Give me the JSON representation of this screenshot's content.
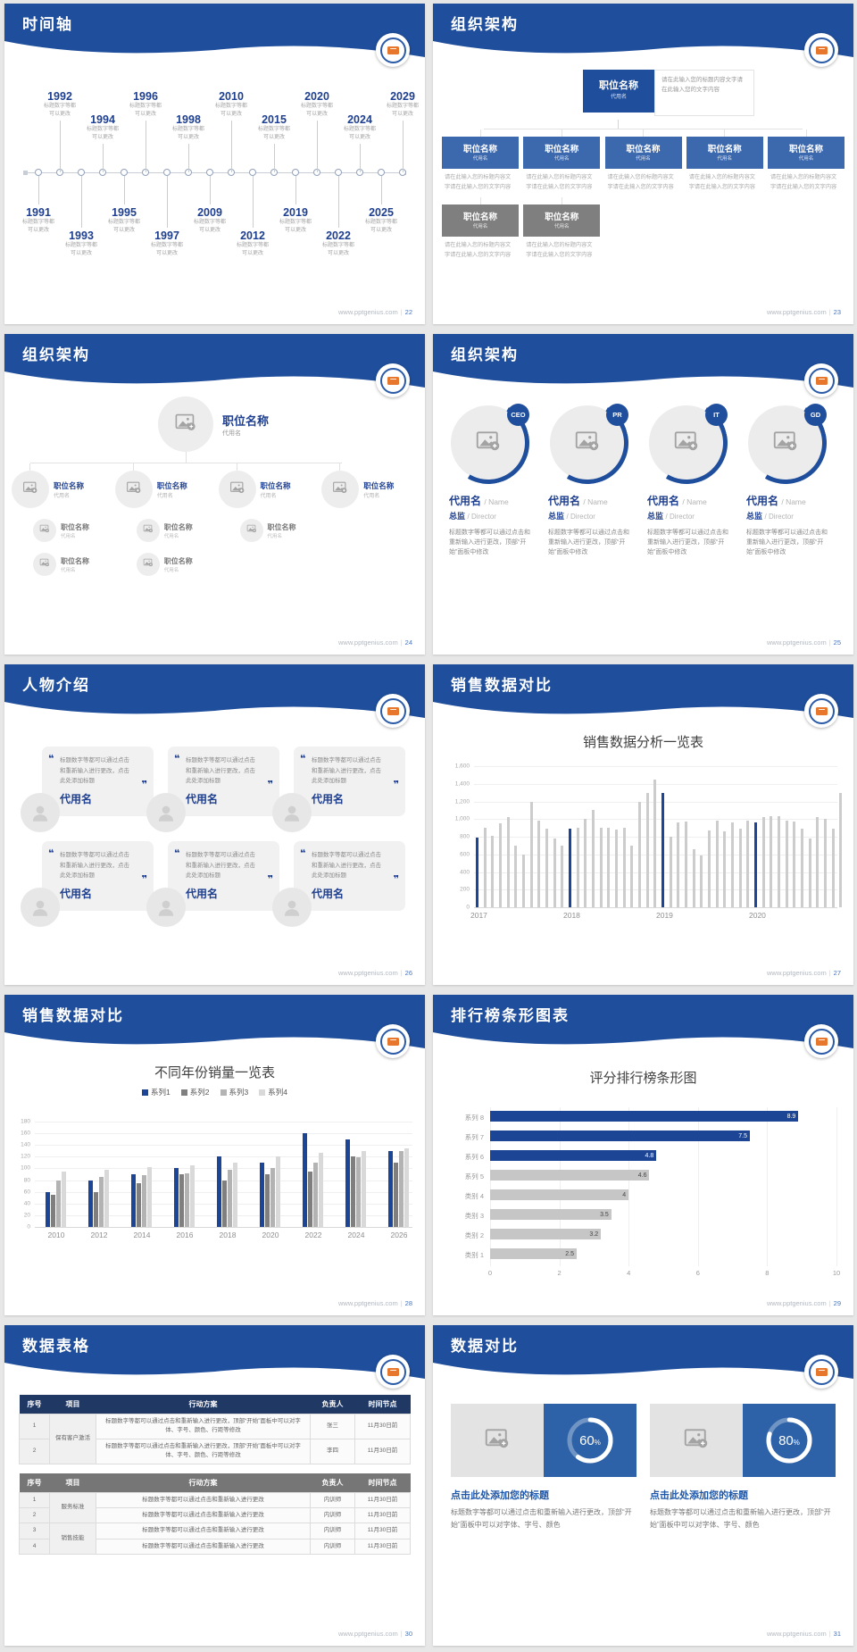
{
  "footer": {
    "site": "www.pptgenius.com",
    "divider": "|"
  },
  "theme": {
    "header_blue": "#1f4e9c",
    "navy": "#1c4596",
    "table1_header": "#1f3864",
    "table2_header": "#767676",
    "gray_box": "#7f7f7f",
    "bar_gray": "#cccccc",
    "donut_panel_blue": "#2d62a8"
  },
  "slides": [
    {
      "title": "时间轴",
      "page": "22",
      "type": "timeline",
      "caption_line1": "标题数字等都",
      "caption_line2": "可以更改",
      "years": [
        {
          "year": "1991",
          "side": "bottom"
        },
        {
          "year": "1992",
          "side": "top"
        },
        {
          "year": "1993",
          "side": "bottom"
        },
        {
          "year": "1994",
          "side": "top"
        },
        {
          "year": "1995",
          "side": "bottom"
        },
        {
          "year": "1996",
          "side": "top"
        },
        {
          "year": "1997",
          "side": "bottom"
        },
        {
          "year": "1998",
          "side": "top"
        },
        {
          "year": "2009",
          "side": "bottom"
        },
        {
          "year": "2010",
          "side": "top"
        },
        {
          "year": "2012",
          "side": "bottom"
        },
        {
          "year": "2015",
          "side": "top"
        },
        {
          "year": "2019",
          "side": "bottom"
        },
        {
          "year": "2020",
          "side": "top"
        },
        {
          "year": "2022",
          "side": "bottom"
        },
        {
          "year": "2024",
          "side": "top"
        },
        {
          "year": "2025",
          "side": "bottom"
        },
        {
          "year": "2029",
          "side": "top"
        }
      ]
    },
    {
      "title": "组织架构",
      "page": "23",
      "type": "org-boxes",
      "box_title": "职位名称",
      "box_sub": "代用名",
      "note": "请在此输入您的标题内容文字请在此输入您的文字内容",
      "desc": "请在此输入您的标题内容文字请在此输入您的文字内容",
      "level2_count": 5,
      "level3_count": 2
    },
    {
      "title": "组织架构",
      "page": "24",
      "type": "org-circles",
      "item_title": "职位名称",
      "item_sub": "代用名",
      "level2_count": 4,
      "level3_row1_count": 3,
      "level3_row2_count": 2
    },
    {
      "title": "组织架构",
      "page": "25",
      "type": "profiles",
      "badges": [
        "CEO",
        "PR",
        "IT",
        "GD"
      ],
      "name_cn": "代用名",
      "name_suffix": "/ Name",
      "role_cn": "总监",
      "role_suffix": "/ Director",
      "desc": "标题数字等都可以通过点击和重新输入进行更改，顶部“开始”面板中修改"
    },
    {
      "title": "人物介绍",
      "page": "26",
      "type": "people",
      "card_count": 6,
      "quote_open": "❝",
      "quote_close": "❞",
      "card_text": "标题数字等都可以通过点击和重新输入进行更改，点击此处添加标题",
      "card_name": "代用名"
    },
    {
      "title": "销售数据对比",
      "page": "27",
      "type": "chart-sales",
      "chart_index": 0
    },
    {
      "title": "销售数据对比",
      "page": "28",
      "type": "chart-grouped",
      "chart_index": 1
    },
    {
      "title": "排行榜条形图表",
      "page": "29",
      "type": "chart-ranking",
      "chart_index": 2
    },
    {
      "title": "数据表格",
      "page": "30",
      "type": "tables",
      "headers": [
        "序号",
        "项目",
        "行动方案",
        "负责人",
        "时间节点"
      ],
      "table1": {
        "groups": [
          {
            "project": "保有客户激活",
            "rows": [
              {
                "no": "1",
                "plan": "标题数字等都可以通过点击和重新输入进行更改，顶部“开始”面板中可以对字体、字号、颜色、行距等修改",
                "owner": "张三",
                "due": "11月30日前"
              },
              {
                "no": "2",
                "plan": "标题数字等都可以通过点击和重新输入进行更改，顶部“开始”面板中可以对字体、字号、颜色、行距等修改",
                "owner": "李四",
                "due": "11月30日前"
              }
            ]
          }
        ]
      },
      "table2": {
        "groups": [
          {
            "project": "服务标准",
            "rows": [
              {
                "no": "1",
                "plan": "标题数字等都可以通过点击和重新输入进行更改",
                "owner": "内训师",
                "due": "11月30日前"
              },
              {
                "no": "2",
                "plan": "标题数字等都可以通过点击和重新输入进行更改",
                "owner": "内训师",
                "due": "11月30日前"
              }
            ]
          },
          {
            "project": "销售技能",
            "rows": [
              {
                "no": "3",
                "plan": "标题数字等都可以通过点击和重新输入进行更改",
                "owner": "内训师",
                "due": "11月30日前"
              },
              {
                "no": "4",
                "plan": "标题数字等都可以通过点击和重新输入进行更改",
                "owner": "内训师",
                "due": "11月30日前"
              }
            ]
          }
        ]
      }
    },
    {
      "title": "数据对比",
      "page": "31",
      "type": "stats",
      "panel_title": "点击此处添加您的标题",
      "panel_desc": "标题数字等都可以通过点击和重新输入进行更改，顶部“开始”面板中可以对字体、字号、颜色",
      "chart_index": 3
    }
  ],
  "chart_data": [
    {
      "type": "bar",
      "title": "销售数据分析一览表",
      "categories": [
        "2017",
        "2018",
        "2019",
        "2020"
      ],
      "ylim": [
        0,
        1600
      ],
      "yticks": [
        "0",
        "200",
        "400",
        "600",
        "800",
        "1,000",
        "1,200",
        "1,400",
        "1,600"
      ],
      "values": [
        790,
        900,
        810,
        950,
        1020,
        700,
        600,
        1200,
        980,
        890,
        780,
        700,
        890,
        900,
        1000,
        1100,
        900,
        900,
        880,
        900,
        700,
        1200,
        1300,
        1450,
        1300,
        800,
        960,
        970,
        660,
        590,
        870,
        980,
        860,
        960,
        890,
        980,
        960,
        1020,
        1030,
        1030,
        980,
        970,
        890,
        780,
        1020,
        1000,
        890,
        1300
      ],
      "highlight_indices": [
        0,
        12,
        24,
        36
      ],
      "bar_color": "#cccccc",
      "highlight_color": "#1c4596",
      "grid": true
    },
    {
      "type": "bar",
      "title": "不同年份销量一览表",
      "categories": [
        "2010",
        "2012",
        "2014",
        "2016",
        "2018",
        "2020",
        "2022",
        "2024",
        "2026"
      ],
      "ylim": [
        0,
        180
      ],
      "yticks": [
        "0",
        "20",
        "40",
        "60",
        "80",
        "100",
        "120",
        "140",
        "160",
        "180"
      ],
      "legend_position": "top",
      "series": [
        {
          "name": "系列1",
          "color": "#1c4596",
          "values": [
            60,
            80,
            90,
            100,
            120,
            110,
            160,
            150,
            130
          ]
        },
        {
          "name": "系列2",
          "color": "#7f7f7f",
          "values": [
            55,
            60,
            75,
            90,
            80,
            90,
            95,
            120,
            110
          ]
        },
        {
          "name": "系列3",
          "color": "#b3b3b3",
          "values": [
            80,
            85,
            88,
            92,
            98,
            100,
            110,
            119,
            130
          ]
        },
        {
          "name": "系列4",
          "color": "#d9d9d9",
          "values": [
            95,
            98,
            102,
            105,
            110,
            120,
            126,
            130,
            135
          ]
        }
      ]
    },
    {
      "type": "bar-horizontal",
      "title": "评分排行榜条形图",
      "xlim": [
        0,
        10
      ],
      "xticks": [
        "0",
        "2",
        "4",
        "6",
        "8",
        "10"
      ],
      "categories": [
        "系列 8",
        "系列 7",
        "系列 6",
        "系列 5",
        "类别 4",
        "类别 3",
        "类别 2",
        "类别 1"
      ],
      "values": [
        8.9,
        7.5,
        4.8,
        4.6,
        4,
        3.5,
        3.2,
        2.5
      ],
      "bar_colors": [
        "#1c4596",
        "#1c4596",
        "#1c4596",
        "#c6c6c6",
        "#c6c6c6",
        "#c6c6c6",
        "#c6c6c6",
        "#c6c6c6"
      ]
    },
    {
      "type": "donut",
      "items": [
        {
          "percent": 60,
          "label": "60",
          "unit": "%"
        },
        {
          "percent": 80,
          "label": "80",
          "unit": "%"
        }
      ]
    }
  ]
}
